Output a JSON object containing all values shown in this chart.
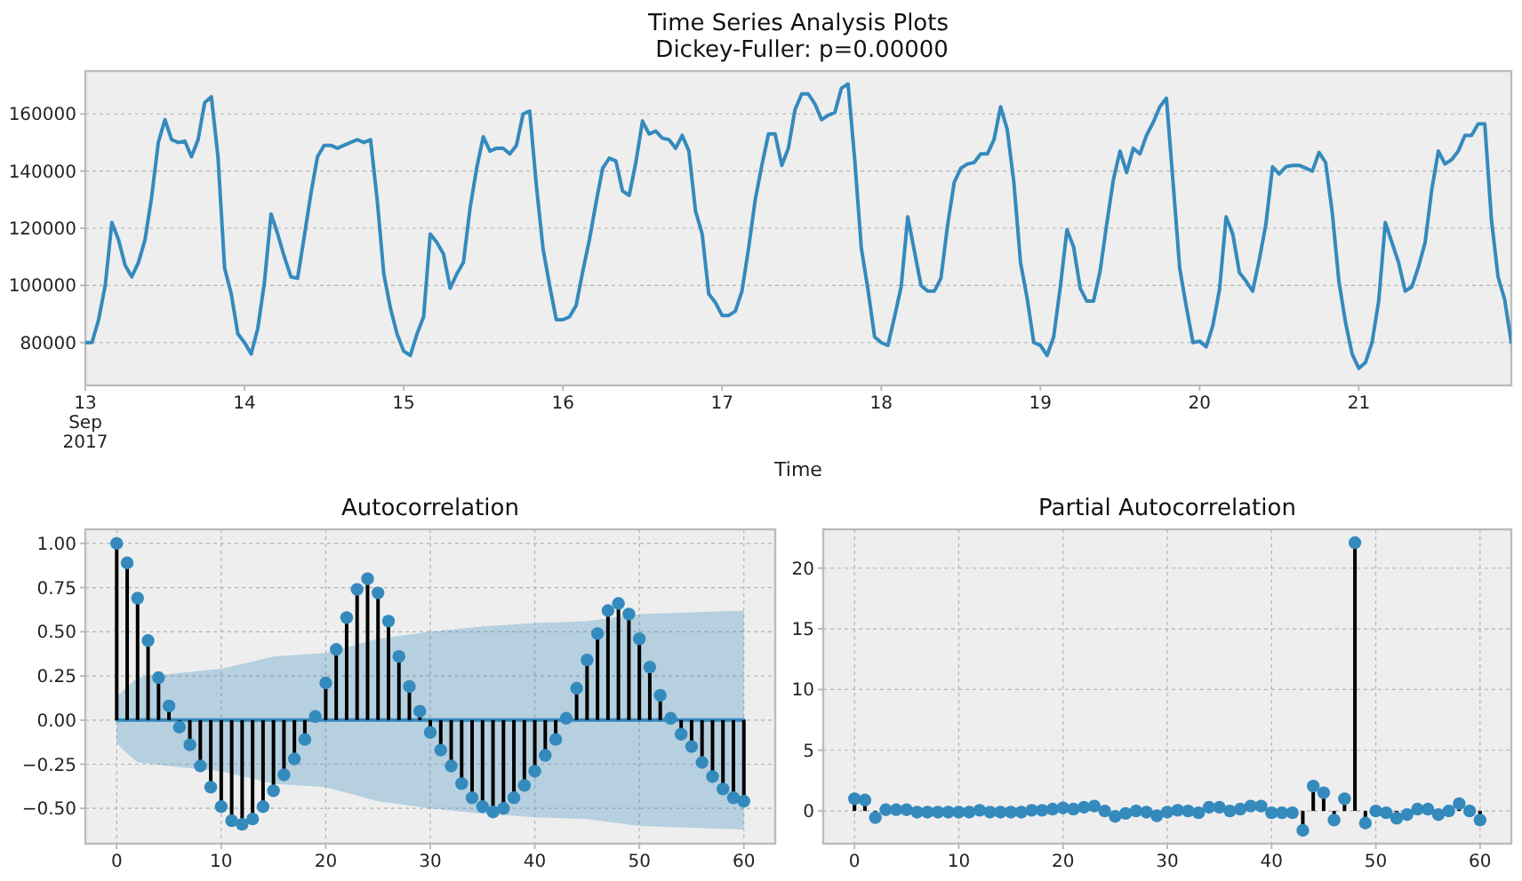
{
  "chart_data": [
    {
      "type": "line",
      "title": "Time Series Analysis Plots\n Dickey-Fuller: p=0.00000",
      "xlabel": "Time",
      "grid": "y",
      "xlim": [
        "2017-09-13T00:00",
        "2017-09-21T23:00"
      ],
      "ylim": [
        65000,
        175000
      ],
      "yticks": [
        80000,
        100000,
        120000,
        140000,
        160000
      ],
      "xticks": [
        {
          "value": "2017-09-13",
          "label": "13\nSep\n2017"
        },
        {
          "value": "2017-09-14",
          "label": "14"
        },
        {
          "value": "2017-09-15",
          "label": "15"
        },
        {
          "value": "2017-09-16",
          "label": "16"
        },
        {
          "value": "2017-09-17",
          "label": "17"
        },
        {
          "value": "2017-09-18",
          "label": "18"
        },
        {
          "value": "2017-09-19",
          "label": "19"
        },
        {
          "value": "2017-09-20",
          "label": "20"
        },
        {
          "value": "2017-09-21",
          "label": "21"
        }
      ],
      "x": [
        "2017-09-13T00:00",
        "2017-09-13T01:00",
        "2017-09-13T02:00",
        "2017-09-13T03:00",
        "2017-09-13T04:00",
        "2017-09-13T05:00",
        "2017-09-13T06:00",
        "2017-09-13T07:00",
        "2017-09-13T08:00",
        "2017-09-13T09:00",
        "2017-09-13T10:00",
        "2017-09-13T11:00",
        "2017-09-13T12:00",
        "2017-09-13T13:00",
        "2017-09-13T14:00",
        "2017-09-13T15:00",
        "2017-09-13T16:00",
        "2017-09-13T17:00",
        "2017-09-13T18:00",
        "2017-09-13T19:00",
        "2017-09-13T20:00",
        "2017-09-13T21:00",
        "2017-09-13T22:00",
        "2017-09-13T23:00",
        "2017-09-14T00:00",
        "2017-09-14T01:00",
        "2017-09-14T02:00",
        "2017-09-14T03:00",
        "2017-09-14T04:00",
        "2017-09-14T05:00",
        "2017-09-14T06:00",
        "2017-09-14T07:00",
        "2017-09-14T08:00",
        "2017-09-14T09:00",
        "2017-09-14T10:00",
        "2017-09-14T11:00",
        "2017-09-14T12:00",
        "2017-09-14T13:00",
        "2017-09-14T14:00",
        "2017-09-14T15:00",
        "2017-09-14T16:00",
        "2017-09-14T17:00",
        "2017-09-14T18:00",
        "2017-09-14T19:00",
        "2017-09-14T20:00",
        "2017-09-14T21:00",
        "2017-09-14T22:00",
        "2017-09-14T23:00",
        "2017-09-15T00:00",
        "2017-09-15T01:00",
        "2017-09-15T02:00",
        "2017-09-15T03:00",
        "2017-09-15T04:00",
        "2017-09-15T05:00",
        "2017-09-15T06:00",
        "2017-09-15T07:00",
        "2017-09-15T08:00",
        "2017-09-15T09:00",
        "2017-09-15T10:00",
        "2017-09-15T11:00",
        "2017-09-15T12:00",
        "2017-09-15T13:00",
        "2017-09-15T14:00",
        "2017-09-15T15:00",
        "2017-09-15T16:00",
        "2017-09-15T17:00",
        "2017-09-15T18:00",
        "2017-09-15T19:00",
        "2017-09-15T20:00",
        "2017-09-15T21:00",
        "2017-09-15T22:00",
        "2017-09-15T23:00",
        "2017-09-16T00:00",
        "2017-09-16T01:00",
        "2017-09-16T02:00",
        "2017-09-16T03:00",
        "2017-09-16T04:00",
        "2017-09-16T05:00",
        "2017-09-16T06:00",
        "2017-09-16T07:00",
        "2017-09-16T08:00",
        "2017-09-16T09:00",
        "2017-09-16T10:00",
        "2017-09-16T11:00",
        "2017-09-16T12:00",
        "2017-09-16T13:00",
        "2017-09-16T14:00",
        "2017-09-16T15:00",
        "2017-09-16T16:00",
        "2017-09-16T17:00",
        "2017-09-16T18:00",
        "2017-09-16T19:00",
        "2017-09-16T20:00",
        "2017-09-16T21:00",
        "2017-09-16T22:00",
        "2017-09-16T23:00",
        "2017-09-17T00:00",
        "2017-09-17T01:00",
        "2017-09-17T02:00",
        "2017-09-17T03:00",
        "2017-09-17T04:00",
        "2017-09-17T05:00",
        "2017-09-17T06:00",
        "2017-09-17T07:00",
        "2017-09-17T08:00",
        "2017-09-17T09:00",
        "2017-09-17T10:00",
        "2017-09-17T11:00",
        "2017-09-17T12:00",
        "2017-09-17T13:00",
        "2017-09-17T14:00",
        "2017-09-17T15:00",
        "2017-09-17T16:00",
        "2017-09-17T17:00",
        "2017-09-17T18:00",
        "2017-09-17T19:00",
        "2017-09-17T20:00",
        "2017-09-17T21:00",
        "2017-09-17T22:00",
        "2017-09-17T23:00",
        "2017-09-18T00:00",
        "2017-09-18T01:00",
        "2017-09-18T02:00",
        "2017-09-18T03:00",
        "2017-09-18T04:00",
        "2017-09-18T05:00",
        "2017-09-18T06:00",
        "2017-09-18T07:00",
        "2017-09-18T08:00",
        "2017-09-18T09:00",
        "2017-09-18T10:00",
        "2017-09-18T11:00",
        "2017-09-18T12:00",
        "2017-09-18T13:00",
        "2017-09-18T14:00",
        "2017-09-18T15:00",
        "2017-09-18T16:00",
        "2017-09-18T17:00",
        "2017-09-18T18:00",
        "2017-09-18T19:00",
        "2017-09-18T20:00",
        "2017-09-18T21:00",
        "2017-09-18T22:00",
        "2017-09-18T23:00",
        "2017-09-19T00:00",
        "2017-09-19T01:00",
        "2017-09-19T02:00",
        "2017-09-19T03:00",
        "2017-09-19T04:00",
        "2017-09-19T05:00",
        "2017-09-19T06:00",
        "2017-09-19T07:00",
        "2017-09-19T08:00",
        "2017-09-19T09:00",
        "2017-09-19T10:00",
        "2017-09-19T11:00",
        "2017-09-19T12:00",
        "2017-09-19T13:00",
        "2017-09-19T14:00",
        "2017-09-19T15:00",
        "2017-09-19T16:00",
        "2017-09-19T17:00",
        "2017-09-19T18:00",
        "2017-09-19T19:00",
        "2017-09-19T20:00",
        "2017-09-19T21:00",
        "2017-09-19T22:00",
        "2017-09-19T23:00",
        "2017-09-20T00:00",
        "2017-09-20T01:00",
        "2017-09-20T02:00",
        "2017-09-20T03:00",
        "2017-09-20T04:00",
        "2017-09-20T05:00",
        "2017-09-20T06:00",
        "2017-09-20T07:00",
        "2017-09-20T08:00",
        "2017-09-20T09:00",
        "2017-09-20T10:00",
        "2017-09-20T11:00",
        "2017-09-20T12:00",
        "2017-09-20T13:00",
        "2017-09-20T14:00",
        "2017-09-20T15:00",
        "2017-09-20T16:00",
        "2017-09-20T17:00",
        "2017-09-20T18:00",
        "2017-09-20T19:00",
        "2017-09-20T20:00",
        "2017-09-20T21:00",
        "2017-09-20T22:00",
        "2017-09-20T23:00",
        "2017-09-21T00:00",
        "2017-09-21T01:00",
        "2017-09-21T02:00",
        "2017-09-21T03:00",
        "2017-09-21T04:00",
        "2017-09-21T05:00",
        "2017-09-21T06:00",
        "2017-09-21T07:00",
        "2017-09-21T08:00",
        "2017-09-21T09:00",
        "2017-09-21T10:00",
        "2017-09-21T11:00",
        "2017-09-21T12:00",
        "2017-09-21T13:00",
        "2017-09-21T14:00",
        "2017-09-21T15:00",
        "2017-09-21T16:00",
        "2017-09-21T17:00",
        "2017-09-21T18:00",
        "2017-09-21T19:00",
        "2017-09-21T20:00",
        "2017-09-21T21:00",
        "2017-09-21T22:00",
        "2017-09-21T23:00"
      ],
      "series": [
        {
          "color": "#348abd",
          "values": [
            80000,
            80000,
            88000,
            100000,
            122000,
            116000,
            107000,
            103000,
            108000,
            116000,
            131000,
            150000,
            158000,
            151000,
            150000,
            150500,
            145000,
            151000,
            164000,
            166000,
            145000,
            106000,
            97000,
            83000,
            80000,
            76000,
            85000,
            101000,
            125000,
            118000,
            110000,
            103000,
            102500,
            117000,
            132000,
            145000,
            149000,
            149000,
            148000,
            149000,
            150000,
            151000,
            150000,
            151000,
            130000,
            104000,
            92000,
            83000,
            77000,
            75500,
            83000,
            89000,
            118000,
            115000,
            111000,
            99000,
            104000,
            108000,
            127000,
            141000,
            152000,
            147000,
            148000,
            148000,
            146000,
            149000,
            160000,
            161000,
            135000,
            113000,
            100000,
            88000,
            88000,
            89000,
            93000,
            105000,
            116000,
            129000,
            141000,
            144500,
            143500,
            133000,
            131500,
            143000,
            157500,
            153000,
            154000,
            151500,
            151000,
            148000,
            152500,
            147000,
            126000,
            118000,
            97000,
            94000,
            89500,
            89500,
            91000,
            98000,
            113000,
            130000,
            142000,
            153000,
            153000,
            142000,
            148000,
            161500,
            167000,
            167000,
            163500,
            158000,
            159500,
            160500,
            169000,
            170500,
            144000,
            113000,
            98500,
            82000,
            80000,
            79000,
            89000,
            99500,
            124000,
            112000,
            100000,
            98000,
            98000,
            102500,
            121000,
            136000,
            141000,
            142500,
            143000,
            146000,
            146000,
            151000,
            162500,
            154500,
            136000,
            108000,
            95500,
            80000,
            79000,
            75500,
            82000,
            99500,
            119500,
            113500,
            99000,
            94500,
            94500,
            105000,
            121500,
            137000,
            147000,
            139500,
            148000,
            146000,
            152500,
            157000,
            162500,
            165500,
            136000,
            106000,
            92500,
            80000,
            80500,
            78500,
            86000,
            98500,
            124000,
            118000,
            104500,
            101500,
            98000,
            109000,
            121500,
            141500,
            139000,
            141500,
            142000,
            142000,
            141000,
            140000,
            146500,
            143000,
            125500,
            101500,
            87000,
            76000,
            71000,
            73000,
            80000,
            94500,
            122000,
            115000,
            108000,
            98000,
            99500,
            106500,
            115000,
            133500,
            147000,
            142500,
            144000,
            147000,
            152500,
            152500,
            156500,
            156500,
            123000,
            103000,
            95000,
            80000
          ]
        }
      ]
    },
    {
      "type": "lollipop",
      "title": "Autocorrelation",
      "grid": true,
      "xlim": [
        -3,
        63
      ],
      "xticks": [
        0,
        10,
        20,
        30,
        40,
        50,
        60
      ],
      "ylim": [
        -0.7,
        1.08
      ],
      "yticks": [
        {
          "value": -0.5,
          "label": "−0.50"
        },
        {
          "value": -0.25,
          "label": "−0.25"
        },
        {
          "value": 0,
          "label": "0.00"
        },
        {
          "value": 0.25,
          "label": "0.25"
        },
        {
          "value": 0.5,
          "label": "0.50"
        },
        {
          "value": 0.75,
          "label": "0.75"
        },
        {
          "value": 1,
          "label": "1.00"
        }
      ],
      "series": [
        {
          "type": "line",
          "color": "#348abd",
          "x": [
            0,
            1,
            2,
            5,
            10,
            15,
            20,
            25,
            30,
            35,
            40,
            45,
            50,
            55,
            60
          ],
          "values": [
            0,
            0,
            0,
            0,
            0,
            0,
            0,
            0,
            0,
            0,
            0,
            0,
            0,
            0,
            0
          ],
          "upper": [
            0.13,
            0.19,
            0.24,
            0.26,
            0.29,
            0.36,
            0.38,
            0.46,
            0.5,
            0.53,
            0.55,
            0.56,
            0.6,
            0.61,
            0.62
          ],
          "lower": [
            -0.13,
            -0.19,
            -0.24,
            -0.26,
            -0.29,
            -0.36,
            -0.38,
            -0.46,
            -0.5,
            -0.53,
            -0.55,
            -0.56,
            -0.6,
            -0.61,
            -0.62
          ]
        },
        {
          "color": "#348abd",
          "x": [
            0,
            1,
            2,
            3,
            4,
            5,
            6,
            7,
            8,
            9,
            10,
            11,
            12,
            13,
            14,
            15,
            16,
            17,
            18,
            19,
            20,
            21,
            22,
            23,
            24,
            25,
            26,
            27,
            28,
            29,
            30,
            31,
            32,
            33,
            34,
            35,
            36,
            37,
            38,
            39,
            40,
            41,
            42,
            43,
            44,
            45,
            46,
            47,
            48,
            49,
            50,
            51,
            52,
            53,
            54,
            55,
            56,
            57,
            58,
            59,
            60
          ],
          "values": [
            1.0,
            0.89,
            0.69,
            0.45,
            0.24,
            0.08,
            -0.04,
            -0.14,
            -0.26,
            -0.38,
            -0.49,
            -0.57,
            -0.59,
            -0.56,
            -0.49,
            -0.4,
            -0.31,
            -0.22,
            -0.11,
            0.02,
            0.21,
            0.4,
            0.58,
            0.74,
            0.8,
            0.72,
            0.56,
            0.36,
            0.19,
            0.05,
            -0.07,
            -0.17,
            -0.26,
            -0.36,
            -0.44,
            -0.49,
            -0.52,
            -0.5,
            -0.44,
            -0.37,
            -0.29,
            -0.2,
            -0.11,
            0.01,
            0.18,
            0.34,
            0.49,
            0.62,
            0.66,
            0.6,
            0.46,
            0.3,
            0.14,
            0.01,
            -0.08,
            -0.15,
            -0.24,
            -0.32,
            -0.39,
            -0.44,
            -0.46
          ]
        }
      ]
    },
    {
      "type": "lollipop",
      "title": "Partial Autocorrelation",
      "grid": true,
      "xlim": [
        -3,
        63
      ],
      "xticks": [
        0,
        10,
        20,
        30,
        40,
        50,
        60
      ],
      "ylim": [
        -2.7,
        23.2
      ],
      "yticks": [
        0,
        5,
        10,
        15,
        20
      ],
      "series": [
        {
          "color": "#348abd",
          "x": [
            0,
            1,
            2,
            3,
            4,
            5,
            6,
            7,
            8,
            9,
            10,
            11,
            12,
            13,
            14,
            15,
            16,
            17,
            18,
            19,
            20,
            21,
            22,
            23,
            24,
            25,
            26,
            27,
            28,
            29,
            30,
            31,
            32,
            33,
            34,
            35,
            36,
            37,
            38,
            39,
            40,
            41,
            42,
            43,
            44,
            45,
            46,
            47,
            48,
            49,
            50,
            51,
            52,
            53,
            54,
            55,
            56,
            57,
            58,
            59,
            60
          ],
          "values": [
            1.0,
            0.9,
            -0.55,
            0.1,
            0.1,
            0.1,
            -0.1,
            -0.1,
            -0.1,
            -0.1,
            -0.1,
            -0.1,
            0.05,
            -0.1,
            -0.1,
            -0.1,
            -0.1,
            0.05,
            0.05,
            0.15,
            0.25,
            0.15,
            0.3,
            0.4,
            0.0,
            -0.45,
            -0.2,
            0.0,
            -0.1,
            -0.4,
            -0.1,
            0.05,
            0.0,
            -0.15,
            0.3,
            0.3,
            0.0,
            0.15,
            0.4,
            0.4,
            -0.15,
            -0.15,
            -0.15,
            -1.6,
            2.05,
            1.5,
            -0.75,
            1.0,
            22.1,
            -1.0,
            0.0,
            -0.15,
            -0.6,
            -0.3,
            0.15,
            0.15,
            -0.3,
            0.0,
            0.6,
            0.0,
            -0.75
          ]
        }
      ]
    }
  ]
}
